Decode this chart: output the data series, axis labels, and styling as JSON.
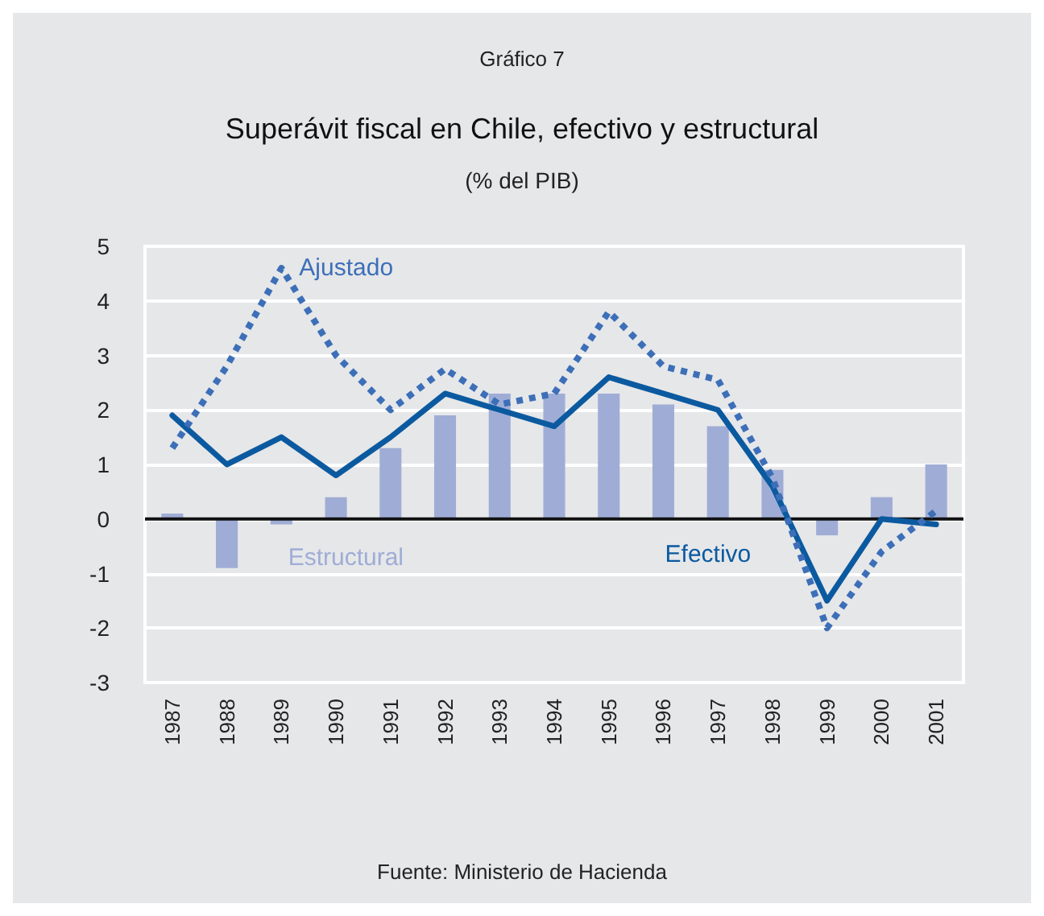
{
  "chart_data": {
    "type": "bar",
    "title": "Superávit fiscal en Chile, efectivo y estructural",
    "subtitle": "(% del PIB)",
    "annotations": [
      "Gráfico 7",
      "Fuente: Ministerio de Hacienda"
    ],
    "categories": [
      "1987",
      "1988",
      "1989",
      "1990",
      "1991",
      "1992",
      "1993",
      "1994",
      "1995",
      "1996",
      "1997",
      "1998",
      "1999",
      "2000",
      "2001"
    ],
    "series": [
      {
        "name": "Estructural",
        "color": "#9fadd6",
        "values": [
          0.1,
          -0.9,
          -0.1,
          0.4,
          1.3,
          1.9,
          2.3,
          2.3,
          2.3,
          2.1,
          1.7,
          0.9,
          -0.3,
          0.4,
          1.0
        ]
      },
      {
        "name": "Efectivo",
        "type": "line",
        "color": "#0b5aa0",
        "line_style": "solid",
        "values": [
          1.9,
          1.0,
          1.5,
          0.8,
          1.5,
          2.3,
          2.0,
          1.7,
          2.6,
          2.3,
          2.0,
          0.6,
          -1.5,
          0.0,
          -0.1
        ]
      },
      {
        "name": "Ajustado",
        "type": "line",
        "color": "#3d6fb8",
        "line_style": "dotted",
        "values": [
          1.3,
          2.8,
          4.6,
          3.0,
          2.0,
          2.75,
          2.1,
          2.3,
          3.8,
          2.8,
          2.55,
          0.75,
          -2.0,
          -0.6,
          0.15
        ]
      }
    ],
    "ylim": [
      -3,
      5
    ],
    "yticks": [
      -3,
      -2,
      -1,
      0,
      1,
      2,
      3,
      4,
      5
    ],
    "grid": "y",
    "legend": false,
    "marker": "none"
  }
}
